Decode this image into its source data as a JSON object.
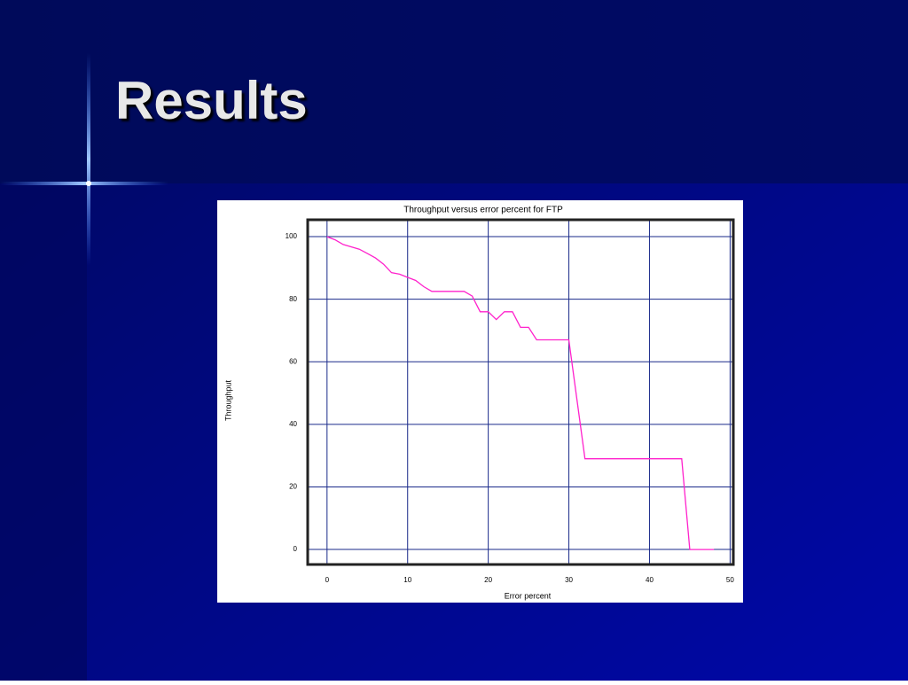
{
  "slide": {
    "title": "Results"
  },
  "chart_data": {
    "type": "line",
    "title": "Throughput versus error percent for FTP",
    "xlabel": "Error percent",
    "ylabel": "Throughput",
    "x": [
      0,
      1,
      2,
      4,
      5,
      6,
      7,
      8,
      9,
      10,
      11,
      12,
      13,
      17,
      18,
      19,
      20,
      21,
      22,
      23,
      24,
      25,
      26,
      30,
      32,
      44,
      45,
      48
    ],
    "values": [
      100,
      99,
      97.5,
      96,
      94.6,
      93.2,
      91.2,
      88.5,
      88,
      87,
      86,
      84,
      82.5,
      82.5,
      81,
      76,
      76,
      73.5,
      76,
      76,
      71,
      71,
      67,
      67,
      29,
      29,
      0,
      0
    ],
    "color": "#ff22cc",
    "xlim": [
      -2.4,
      50.4
    ],
    "ylim": [
      -4.8,
      105.4
    ],
    "xticks": [
      0,
      10,
      20,
      30,
      40,
      50
    ],
    "yticks": [
      0,
      20,
      40,
      60,
      80,
      100
    ],
    "grid": true
  }
}
